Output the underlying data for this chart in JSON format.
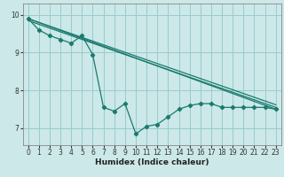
{
  "xlabel": "Humidex (Indice chaleur)",
  "bg_color": "#cce8e8",
  "grid_color": "#99cccc",
  "line_color": "#1a7a6e",
  "xlim": [
    -0.5,
    23.5
  ],
  "ylim": [
    6.55,
    10.3
  ],
  "yticks": [
    7,
    8,
    9,
    10
  ],
  "xticks": [
    0,
    1,
    2,
    3,
    4,
    5,
    6,
    7,
    8,
    9,
    10,
    11,
    12,
    13,
    14,
    15,
    16,
    17,
    18,
    19,
    20,
    21,
    22,
    23
  ],
  "line1_x": [
    0,
    1,
    2,
    3,
    4,
    5,
    6,
    7,
    8,
    9,
    10,
    11,
    12,
    13,
    14,
    15,
    16,
    17,
    18,
    19,
    20,
    21,
    22,
    23
  ],
  "line1_y": [
    9.9,
    9.6,
    9.45,
    9.35,
    9.25,
    9.45,
    8.95,
    7.55,
    7.45,
    7.65,
    6.85,
    7.05,
    7.1,
    7.3,
    7.5,
    7.6,
    7.65,
    7.65,
    7.55,
    7.55,
    7.55,
    7.55,
    7.55,
    7.5
  ],
  "line2_x": [
    0,
    23
  ],
  "line2_y": [
    9.9,
    7.5
  ],
  "line3_x": [
    0,
    23
  ],
  "line3_y": [
    9.9,
    7.62
  ],
  "line4_x": [
    0,
    23
  ],
  "line4_y": [
    9.85,
    7.55
  ],
  "tick_fontsize": 5.5,
  "xlabel_fontsize": 6.5
}
